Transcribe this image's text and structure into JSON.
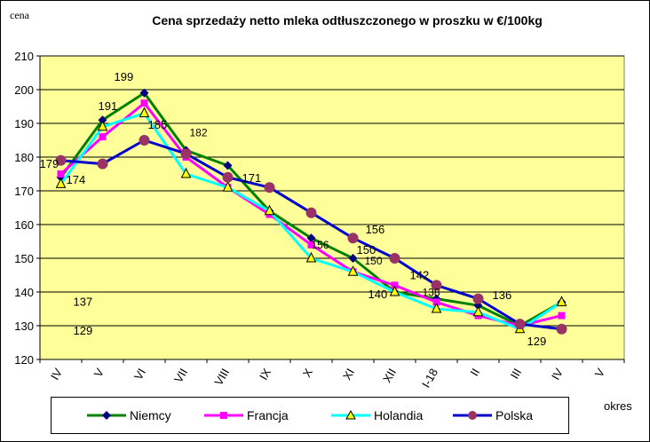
{
  "chart_data": {
    "type": "line",
    "title": "Cena sprzedaży netto mleka odtłuszczonego w proszku w €/100kg",
    "ylabel": "cena",
    "xlabel": "okres",
    "ylim": [
      120,
      210
    ],
    "yticks": [
      120,
      130,
      140,
      150,
      160,
      170,
      180,
      190,
      200,
      210
    ],
    "categories": [
      "IV",
      "V",
      "VI",
      "VII",
      "VIII",
      "IX",
      "X",
      "XI",
      "XII",
      "I-18",
      "II",
      "III",
      "IV",
      "V"
    ],
    "grid": "horizontal",
    "legend_position": "bottom",
    "series": [
      {
        "name": "Niemcy",
        "color": "#008000",
        "marker": "diamond",
        "marker_color": "#000080",
        "values": [
          174,
          191,
          199,
          182,
          177.5,
          164,
          156,
          150,
          140,
          138,
          136,
          130,
          137,
          null
        ]
      },
      {
        "name": "Francja",
        "color": "#FF00FF",
        "marker": "square",
        "marker_color": "#FF00FF",
        "values": [
          175,
          186,
          196,
          180,
          171,
          163,
          154,
          146,
          142,
          137,
          133,
          130,
          133,
          null
        ]
      },
      {
        "name": "Holandia",
        "color": "#00FFFF",
        "marker": "triangle",
        "marker_color": "#FFFF00",
        "values": [
          172,
          189,
          193,
          175,
          171,
          164,
          150,
          146,
          140,
          135,
          134,
          129,
          137,
          null
        ]
      },
      {
        "name": "Polska",
        "color": "#0000CC",
        "marker": "circle",
        "marker_color": "#993366",
        "values": [
          179,
          178,
          185,
          181,
          174,
          171,
          163.5,
          156,
          150,
          142,
          138,
          130.5,
          129,
          null
        ]
      }
    ],
    "annotations": [
      {
        "text": "174",
        "x": "IV"
      },
      {
        "text": "179",
        "x": "IV"
      },
      {
        "text": "191",
        "x": "V"
      },
      {
        "text": "199",
        "x": "VI"
      },
      {
        "text": "185",
        "x": "VI"
      },
      {
        "text": "182",
        "x": "VII"
      },
      {
        "text": "171",
        "x": "IX"
      },
      {
        "text": "156",
        "x": "X"
      },
      {
        "text": "156",
        "x": "XI"
      },
      {
        "text": "150",
        "x": "XI"
      },
      {
        "text": "150",
        "x": "XII"
      },
      {
        "text": "140",
        "x": "XII"
      },
      {
        "text": "142",
        "x": "I-18"
      },
      {
        "text": "138",
        "x": "I-18"
      },
      {
        "text": "136",
        "x": "II"
      },
      {
        "text": "129",
        "x": "III"
      },
      {
        "text": "137",
        "x": "IV"
      },
      {
        "text": "129",
        "x": "IV"
      }
    ]
  }
}
